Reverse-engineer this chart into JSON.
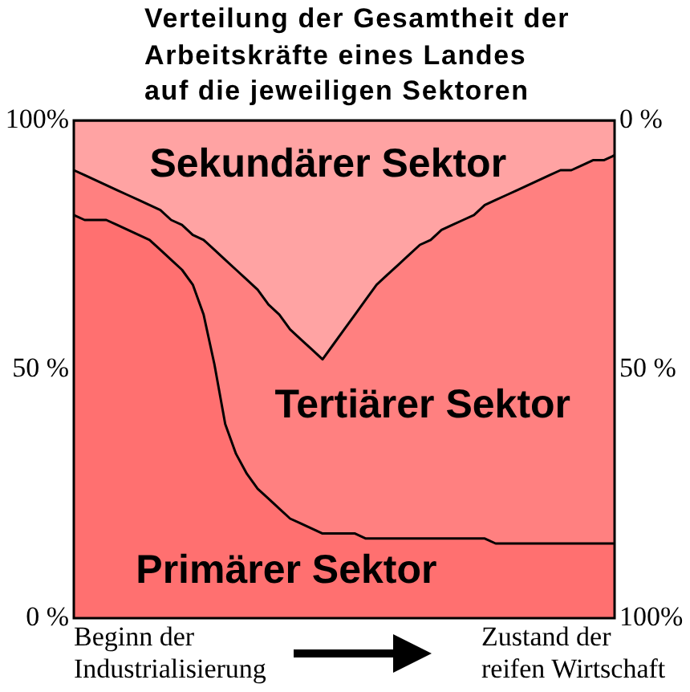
{
  "chart_data": {
    "type": "area",
    "title": "Verteilung der Gesamtheit der Arbeitskräfte eines Landes auf die jeweiligen Sektoren",
    "categories": [
      null,
      null,
      null,
      null,
      null,
      null,
      null,
      null,
      null,
      null,
      null,
      null,
      null,
      null,
      null,
      null,
      null,
      null,
      null,
      null,
      null,
      null,
      null,
      null,
      null,
      null,
      null,
      null,
      null,
      null,
      null,
      null,
      null,
      null,
      null,
      null,
      null,
      null,
      null,
      null,
      null,
      null,
      null,
      null,
      null,
      null,
      null,
      null,
      null,
      null,
      null
    ],
    "series": [
      {
        "name": "Primärer Sektor",
        "color": "#ff7070",
        "values": [
          81,
          80,
          80,
          80,
          79,
          78,
          77,
          76,
          74,
          72,
          70,
          67,
          61,
          51,
          39,
          33,
          29,
          26,
          24,
          22,
          20,
          19,
          18,
          17,
          17,
          17,
          17,
          16,
          16,
          16,
          16,
          16,
          16,
          16,
          16,
          16,
          16,
          16,
          16,
          15,
          15,
          15,
          15,
          15,
          15,
          15,
          15,
          15,
          15,
          15,
          15
        ]
      },
      {
        "name": "Tertiärer Sektor",
        "color": "#ff8080",
        "values": [
          9,
          9,
          8,
          7,
          7,
          7,
          7,
          7,
          8,
          8,
          9,
          10,
          15,
          23,
          33,
          37,
          39,
          40,
          39,
          39,
          38,
          37,
          36,
          35,
          38,
          41,
          44,
          48,
          51,
          53,
          55,
          57,
          59,
          60,
          62,
          63,
          64,
          65,
          67,
          69,
          70,
          71,
          72,
          73,
          74,
          75,
          75,
          76,
          77,
          77,
          78
        ]
      },
      {
        "name": "Sekundärer Sektor",
        "color": "#ffa3a3",
        "values": [
          10,
          11,
          12,
          13,
          14,
          15,
          16,
          17,
          18,
          20,
          21,
          23,
          24,
          26,
          28,
          30,
          32,
          34,
          37,
          39,
          42,
          44,
          46,
          48,
          45,
          42,
          39,
          36,
          33,
          31,
          29,
          27,
          25,
          24,
          22,
          21,
          20,
          19,
          17,
          16,
          15,
          14,
          13,
          12,
          11,
          10,
          10,
          9,
          8,
          8,
          7
        ]
      }
    ],
    "stacked": true,
    "ylim": [
      0,
      100
    ],
    "yticks": [
      {
        "value": 0,
        "label": "0 %"
      },
      {
        "value": 50,
        "label": "50 %"
      },
      {
        "value": 100,
        "label": "100%"
      }
    ],
    "y2lim": [
      100,
      0
    ],
    "y2ticks": [
      {
        "value": 0,
        "label": "0 %"
      },
      {
        "value": 50,
        "label": "50 %"
      },
      {
        "value": 100,
        "label": "100%"
      }
    ],
    "legend": false,
    "marker": "none",
    "annotations": [
      "Beginn der Industrialisierung",
      "Zustand der reifen Wirtschaft"
    ]
  }
}
